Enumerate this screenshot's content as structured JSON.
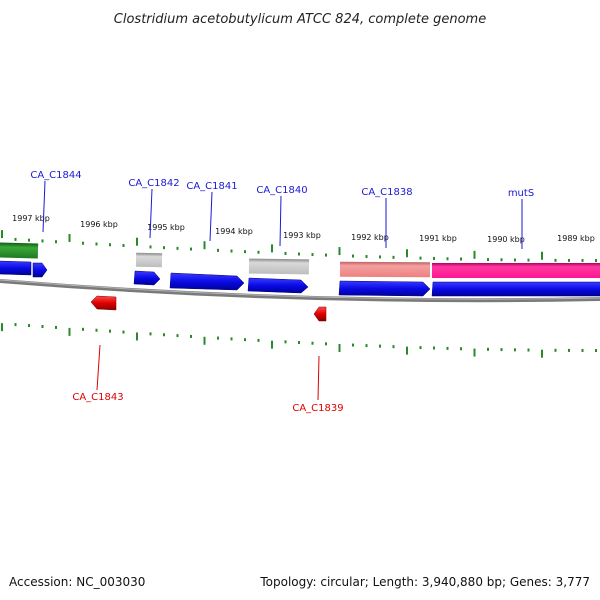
{
  "title": "Clostridium acetobutylicum ATCC 824, complete genome",
  "footer": {
    "accession": "Accession: NC_003030",
    "summary": "Topology: circular; Length: 3,940,880 bp; Genes: 3,777"
  },
  "colors": {
    "forward_label": "#1a1ad6",
    "reverse_label": "#e00000",
    "tick": "#2a8a2a",
    "backbone": "#8a8a8a",
    "gene_blue": "#0a0ae6",
    "gene_red": "#e00000",
    "gene_gray": "#bdbdbd",
    "gene_pink": "#f08a8a",
    "gene_magenta": "#ff1493",
    "gene_green": "#228b22"
  },
  "kbp_labels": [
    "1997 kbp",
    "1996 kbp",
    "1995 kbp",
    "1994 kbp",
    "1993 kbp",
    "1992 kbp",
    "1991 kbp",
    "1990 kbp",
    "1989 kbp"
  ],
  "forward_genes": [
    {
      "label": "CA_C1844"
    },
    {
      "label": "CA_C1842"
    },
    {
      "label": "CA_C1841"
    },
    {
      "label": "CA_C1840"
    },
    {
      "label": "CA_C1838"
    },
    {
      "label": "mutS"
    }
  ],
  "reverse_genes": [
    {
      "label": "CA_C1843"
    },
    {
      "label": "CA_C1839"
    }
  ]
}
